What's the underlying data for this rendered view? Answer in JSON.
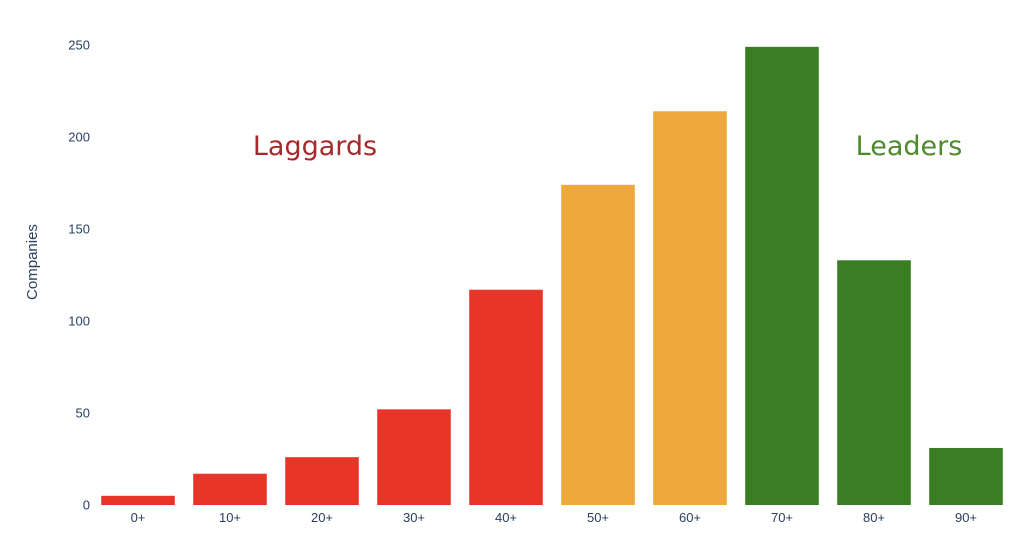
{
  "chart_data": {
    "type": "bar",
    "title": "",
    "xlabel": "",
    "ylabel": "Companies",
    "ylim": [
      0,
      250
    ],
    "yticks": [
      0,
      50,
      100,
      150,
      200,
      250
    ],
    "grid": false,
    "categories": [
      "0+",
      "10+",
      "20+",
      "30+",
      "40+",
      "50+",
      "60+",
      "70+",
      "80+",
      "90+"
    ],
    "values": [
      5,
      17,
      26,
      52,
      117,
      174,
      214,
      249,
      133,
      31
    ],
    "bar_colors": [
      "#e8352a",
      "#e8352a",
      "#e8352a",
      "#e8352a",
      "#e8352a",
      "#efa83b",
      "#efa83b",
      "#3a7d22",
      "#3a7d22",
      "#3a7d22"
    ],
    "annotations": [
      {
        "text": "Laggards",
        "color": "#a8282b"
      },
      {
        "text": "Leaders",
        "color": "#4f8a2f"
      }
    ]
  }
}
